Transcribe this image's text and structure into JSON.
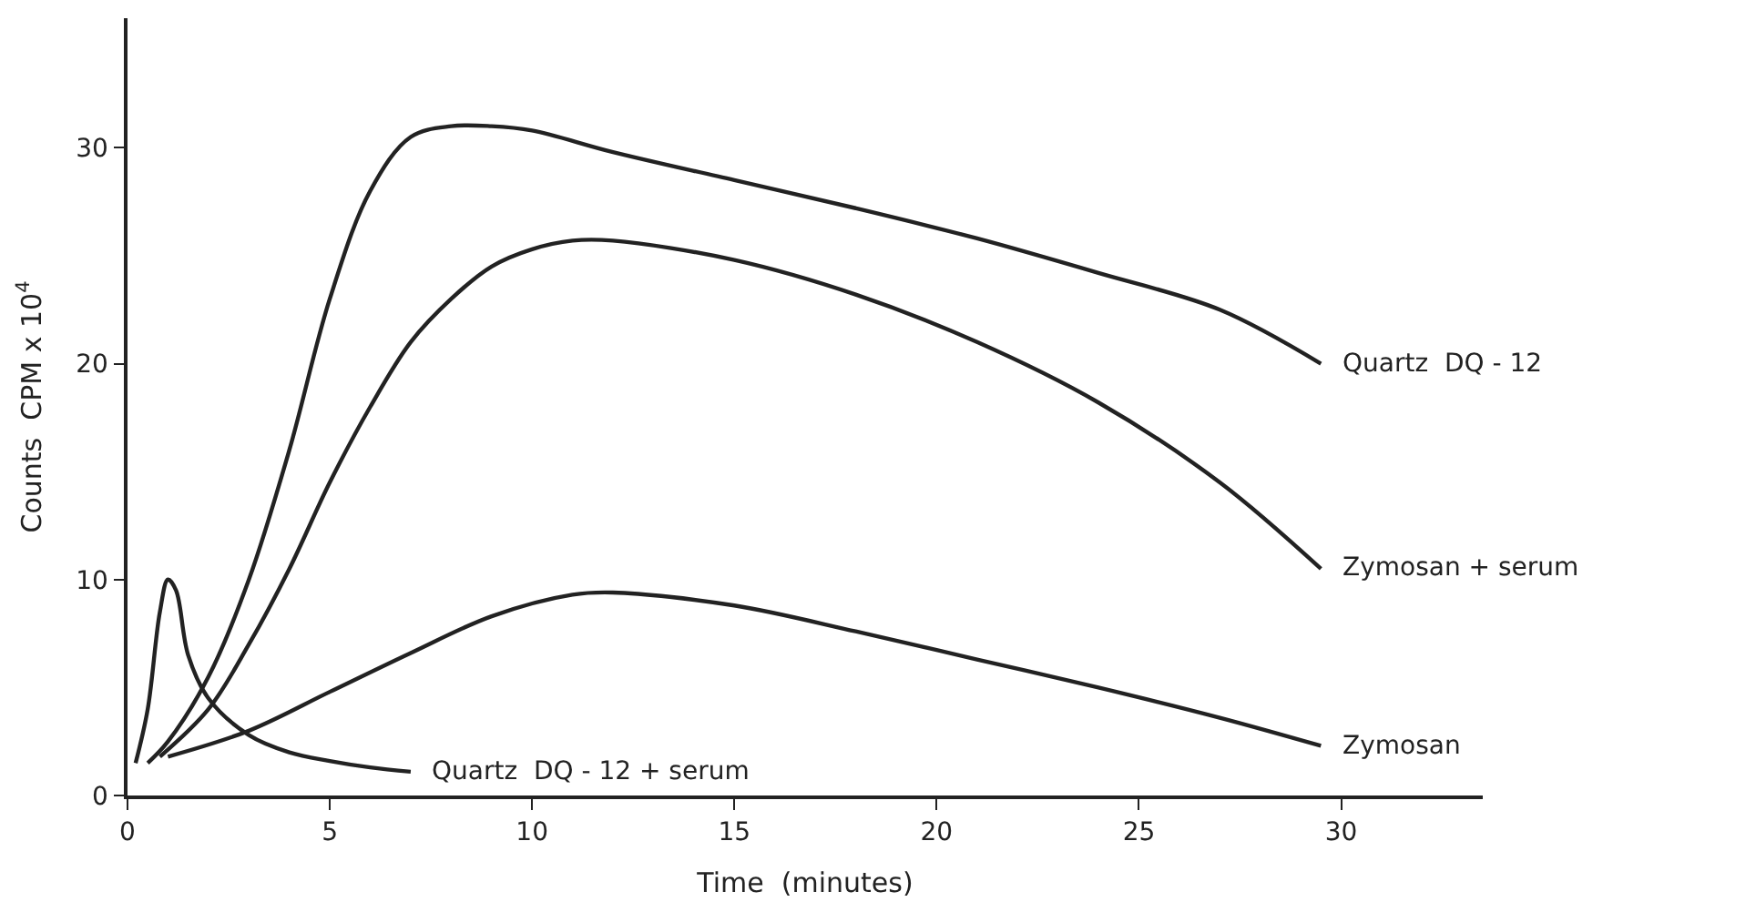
{
  "chart_data": {
    "type": "line",
    "xlabel": "Time  (minutes)",
    "ylabel": "Counts  CPM x 10$^{4}$",
    "xlim": [
      0,
      33.5
    ],
    "ylim": [
      0,
      36
    ],
    "xticks": [
      0,
      5,
      10,
      15,
      20,
      25,
      30
    ],
    "yticks": [
      0,
      10,
      20,
      30
    ],
    "legend": false,
    "marker": "none",
    "line_style": "solid",
    "series": [
      {
        "name": "Quartz  DQ - 12",
        "color": "#222222",
        "x": [
          0.5,
          1,
          2,
          3,
          4,
          5,
          6,
          7,
          8,
          9,
          10,
          12,
          15,
          18,
          21,
          24,
          27,
          29.5
        ],
        "values": [
          1.5,
          2.5,
          5.5,
          10,
          16,
          23,
          28,
          30.5,
          31,
          31,
          30.8,
          29.8,
          28.5,
          27.2,
          25.8,
          24.2,
          22.5,
          20
        ]
      },
      {
        "name": "Zymosan + serum",
        "color": "#222222",
        "x": [
          0.8,
          2,
          3,
          4,
          5,
          6,
          7,
          8,
          9,
          10,
          11,
          12,
          15,
          18,
          21,
          24,
          27,
          29.5
        ],
        "values": [
          1.8,
          4,
          7,
          10.5,
          14.5,
          18,
          21,
          23,
          24.5,
          25.3,
          25.7,
          25.7,
          24.8,
          23.2,
          21,
          18.2,
          14.5,
          10.5
        ]
      },
      {
        "name": "Zymosan",
        "color": "#222222",
        "x": [
          1,
          3,
          5,
          7,
          9,
          11,
          12,
          15,
          18,
          21,
          24,
          27,
          29.5
        ],
        "values": [
          1.8,
          3,
          4.8,
          6.6,
          8.3,
          9.3,
          9.4,
          8.8,
          7.6,
          6.3,
          5,
          3.6,
          2.3
        ]
      },
      {
        "name": "Quartz  DQ - 12 + serum",
        "color": "#222222",
        "x": [
          0.2,
          0.5,
          0.8,
          1,
          1.2,
          1.5,
          2,
          3,
          4,
          5,
          6,
          7
        ],
        "values": [
          1.5,
          4,
          8.5,
          10,
          9.5,
          6.5,
          4.5,
          2.8,
          2,
          1.6,
          1.3,
          1.1
        ]
      }
    ]
  }
}
